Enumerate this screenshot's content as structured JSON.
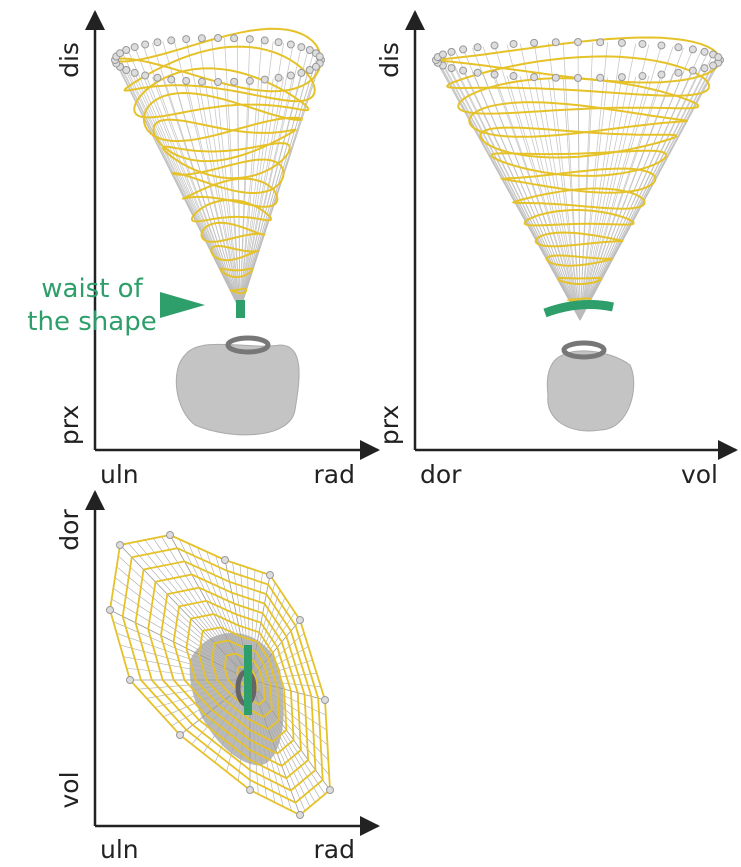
{
  "panels": [
    {
      "y_axis": {
        "top": "dis",
        "bottom": "prx"
      },
      "x_axis": {
        "left": "uln",
        "right": "rad"
      },
      "annotation": {
        "lines": [
          "waist of",
          "the shape"
        ]
      }
    },
    {
      "y_axis": {
        "top": "dis",
        "bottom": "prx"
      },
      "x_axis": {
        "left": "dor",
        "right": "vol"
      }
    },
    {
      "y_axis": {
        "top": "dor",
        "bottom": "vol"
      },
      "x_axis": {
        "left": "uln",
        "right": "rad"
      }
    }
  ]
}
